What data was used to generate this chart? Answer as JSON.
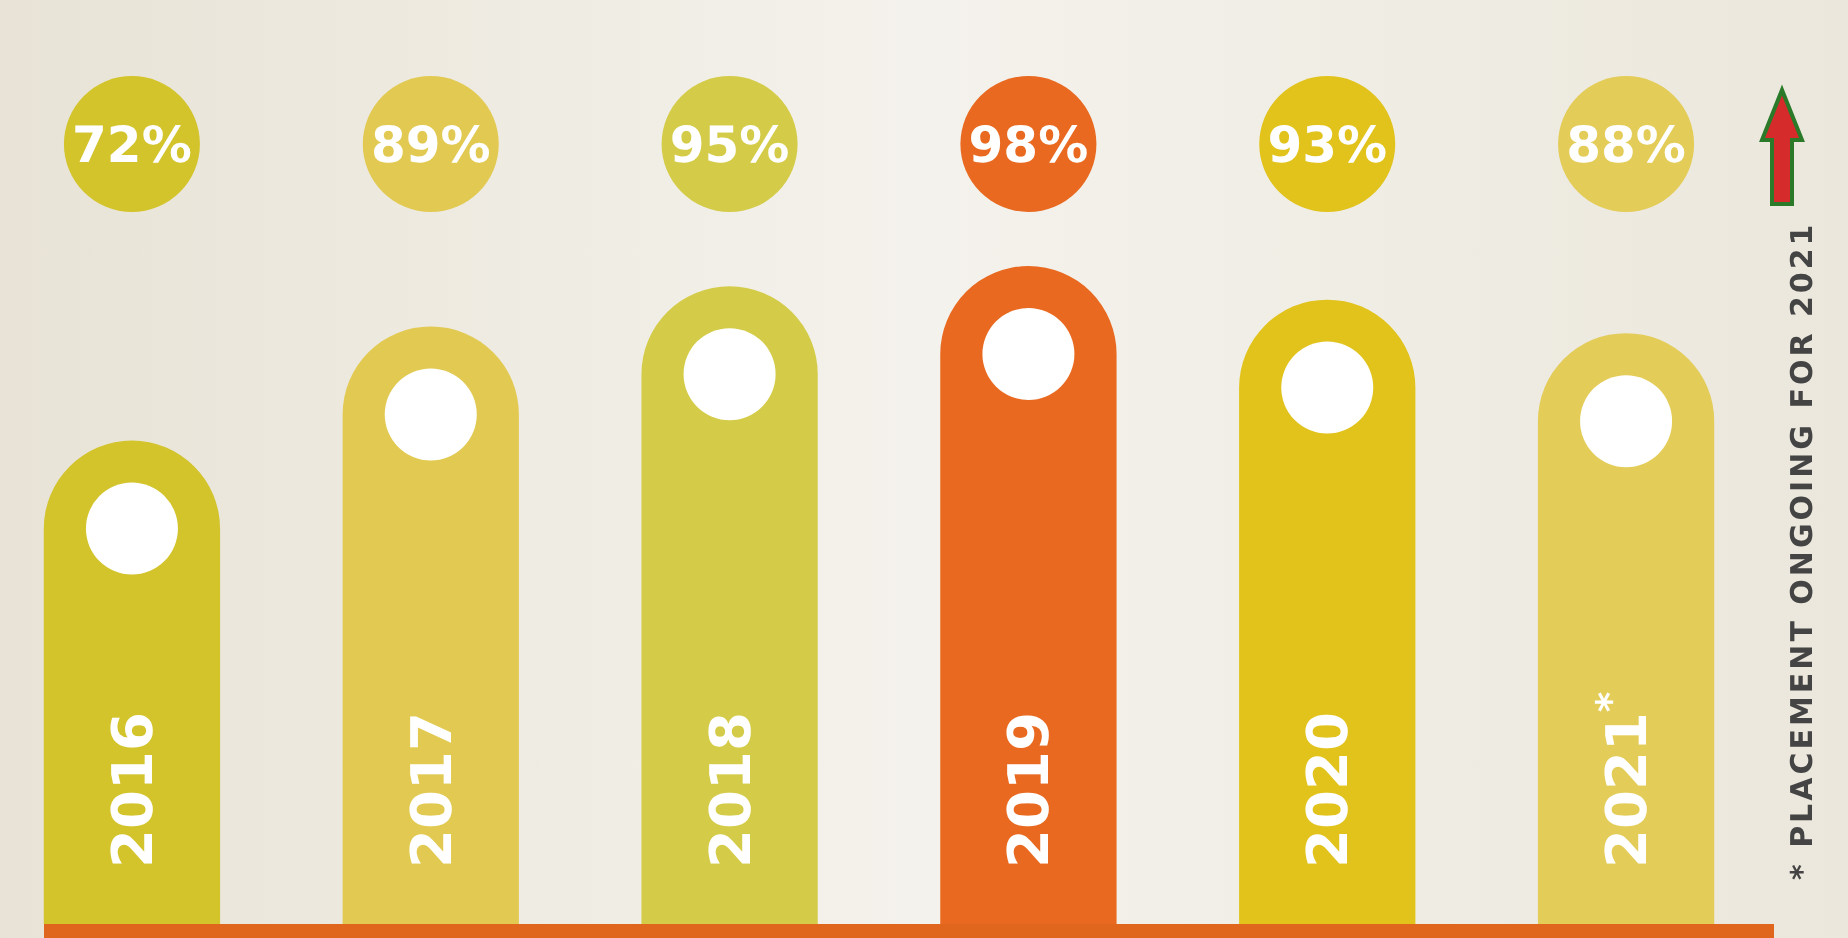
{
  "chart_data": {
    "type": "bar",
    "categories": [
      "2016",
      "2017",
      "2018",
      "2019",
      "2020",
      "2021$^{*}$"
    ],
    "values": [
      72,
      89,
      95,
      98,
      93,
      88
    ],
    "colors": [
      "#d3c42c",
      "#e2ca52",
      "#d4cc48",
      "#e8691f",
      "#e1c31c",
      "#e3cc58"
    ],
    "data_labels": true,
    "value_labels": [
      "72%",
      "89%",
      "95%",
      "98%",
      "93%",
      "88%"
    ],
    "annotations": [
      "* PLACEMENT ONGOING FOR 2021"
    ]
  }
}
